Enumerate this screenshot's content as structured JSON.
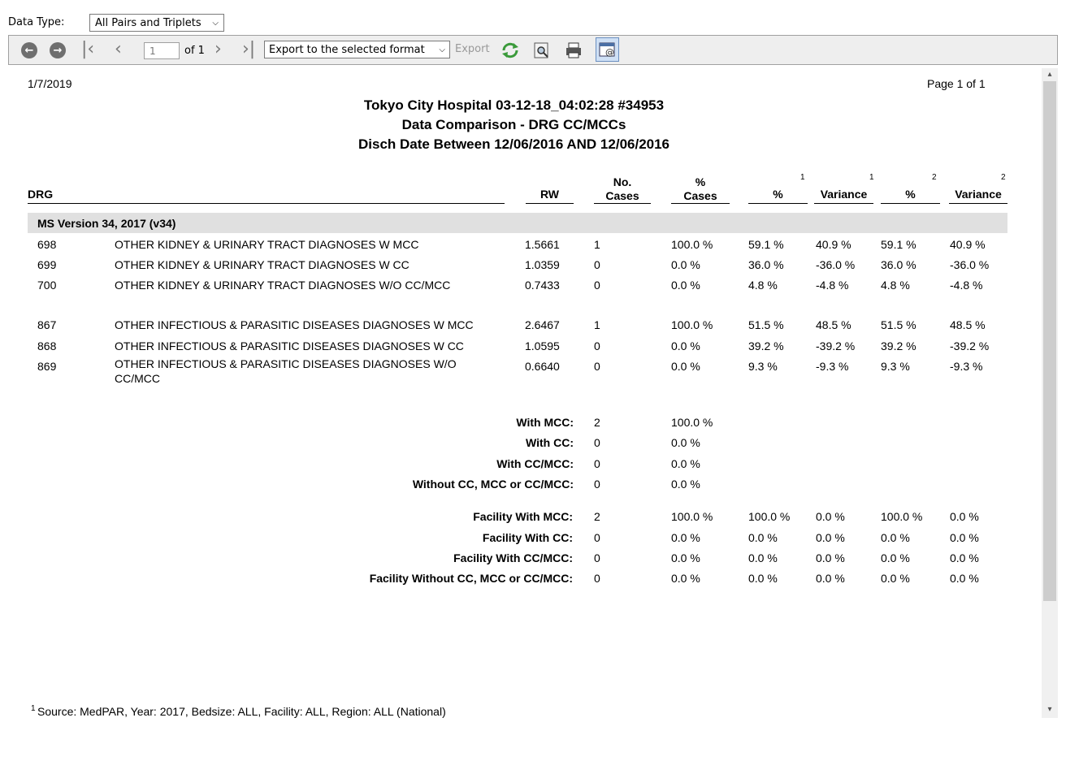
{
  "toolbar": {
    "data_type_label": "Data Type:",
    "data_type_value": "All Pairs and Triplets",
    "page_input": "1",
    "of_label": "of 1",
    "export_format": "Export to the selected format",
    "export_label": "Export"
  },
  "report": {
    "date": "1/7/2019",
    "page": "Page 1 of 1",
    "title1": "Tokyo City Hospital 03-12-18_04:02:28 #34953",
    "title2": "Data Comparison - DRG CC/MCCs",
    "title3": "Disch Date Between 12/06/2016 AND 12/06/2016",
    "headers": {
      "drg": "DRG",
      "rw": "RW",
      "no_cases_1": "No.",
      "no_cases_2": "Cases",
      "pct_cases_1": "%",
      "pct_cases_2": "Cases",
      "pct1": "%",
      "var1": "Variance",
      "pct2": "%",
      "var2": "Variance",
      "sup1a": "1",
      "sup1b": "1",
      "sup2a": "2",
      "sup2b": "2"
    },
    "version": "MS Version 34, 2017 (v34)",
    "rows": [
      {
        "drg": "698",
        "desc": "OTHER KIDNEY & URINARY TRACT DIAGNOSES W MCC",
        "rw": "1.5661",
        "cases": "1",
        "pct_cases": "100.0 %",
        "p1": "59.1 %",
        "v1": "40.9 %",
        "p2": "59.1 %",
        "v2": "40.9 %"
      },
      {
        "drg": "699",
        "desc": "OTHER KIDNEY & URINARY TRACT DIAGNOSES W CC",
        "rw": "1.0359",
        "cases": "0",
        "pct_cases": "0.0 %",
        "p1": "36.0 %",
        "v1": "-36.0 %",
        "p2": "36.0 %",
        "v2": "-36.0 %"
      },
      {
        "drg": "700",
        "desc": "OTHER KIDNEY & URINARY TRACT DIAGNOSES W/O CC/MCC",
        "rw": "0.7433",
        "cases": "0",
        "pct_cases": "0.0 %",
        "p1": "4.8 %",
        "v1": "-4.8 %",
        "p2": "4.8 %",
        "v2": "-4.8 %"
      },
      {
        "drg": "867",
        "desc": "OTHER INFECTIOUS & PARASITIC DISEASES DIAGNOSES W MCC",
        "rw": "2.6467",
        "cases": "1",
        "pct_cases": "100.0 %",
        "p1": "51.5 %",
        "v1": "48.5 %",
        "p2": "51.5 %",
        "v2": "48.5 %"
      },
      {
        "drg": "868",
        "desc": "OTHER INFECTIOUS & PARASITIC DISEASES DIAGNOSES W CC",
        "rw": "1.0595",
        "cases": "0",
        "pct_cases": "0.0 %",
        "p1": "39.2 %",
        "v1": "-39.2 %",
        "p2": "39.2 %",
        "v2": "-39.2 %"
      },
      {
        "drg": "869",
        "desc": "OTHER INFECTIOUS & PARASITIC DISEASES DIAGNOSES W/O CC/MCC",
        "rw": "0.6640",
        "cases": "0",
        "pct_cases": "0.0 %",
        "p1": "9.3 %",
        "v1": "-9.3 %",
        "p2": "9.3 %",
        "v2": "-9.3 %"
      }
    ],
    "summary": [
      {
        "label": "With MCC:",
        "cases": "2",
        "pct": "100.0 %"
      },
      {
        "label": "With CC:",
        "cases": "0",
        "pct": "0.0 %"
      },
      {
        "label": "With CC/MCC:",
        "cases": "0",
        "pct": "0.0 %"
      },
      {
        "label": "Without CC, MCC or CC/MCC:",
        "cases": "0",
        "pct": "0.0 %"
      }
    ],
    "facility": [
      {
        "label": "Facility With MCC:",
        "cases": "2",
        "pct": "100.0 %",
        "p1": "100.0 %",
        "v1": "0.0 %",
        "p2": "100.0 %",
        "v2": "0.0 %"
      },
      {
        "label": "Facility With CC:",
        "cases": "0",
        "pct": "0.0 %",
        "p1": "0.0 %",
        "v1": "0.0 %",
        "p2": "0.0 %",
        "v2": "0.0 %"
      },
      {
        "label": "Facility With CC/MCC:",
        "cases": "0",
        "pct": "0.0 %",
        "p1": "0.0 %",
        "v1": "0.0 %",
        "p2": "0.0 %",
        "v2": "0.0 %"
      },
      {
        "label": "Facility Without CC, MCC or CC/MCC:",
        "cases": "0",
        "pct": "0.0 %",
        "p1": "0.0 %",
        "v1": "0.0 %",
        "p2": "0.0 %",
        "v2": "0.0 %"
      }
    ],
    "footnote_sup": "1",
    "footnote": "Source: MedPAR, Year: 2017, Bedsize: ALL, Facility: ALL, Region: ALL (National)"
  }
}
